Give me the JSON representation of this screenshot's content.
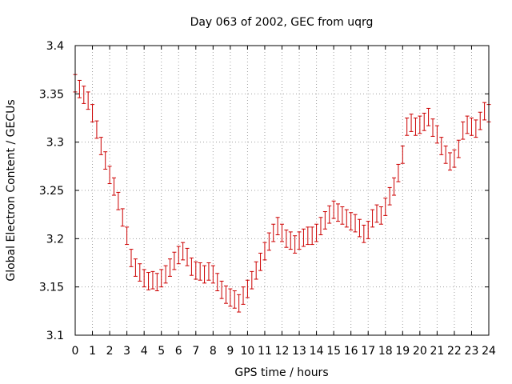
{
  "chart_data": {
    "type": "line",
    "title": "Day 063 of 2002, GEC from uqrg",
    "xlabel": "GPS time / hours",
    "ylabel": "Global Electron Content / GECUs",
    "xlim": [
      0,
      24
    ],
    "ylim": [
      3.1,
      3.4
    ],
    "x_ticks": [
      "0",
      "1",
      "2",
      "3",
      "4",
      "5",
      "6",
      "7",
      "8",
      "9",
      "10",
      "11",
      "12",
      "13",
      "14",
      "15",
      "16",
      "17",
      "18",
      "19",
      "20",
      "21",
      "22",
      "23",
      "24"
    ],
    "y_ticks": [
      "3.1",
      "3.15",
      "3.2",
      "3.25",
      "3.3",
      "3.35",
      "3.4"
    ],
    "grid": true,
    "error_bars": true,
    "series_color": "#cc0000",
    "series": [
      {
        "x": [
          0,
          0.25,
          0.5,
          0.75,
          1,
          1.25,
          1.5,
          1.75,
          2,
          2.25,
          2.5,
          2.75,
          3,
          3.25,
          3.5,
          3.75,
          4,
          4.25,
          4.5,
          4.75,
          5,
          5.25,
          5.5,
          5.75,
          6,
          6.25,
          6.5,
          6.75,
          7,
          7.25,
          7.5,
          7.75,
          8,
          8.25,
          8.5,
          8.75,
          9,
          9.25,
          9.5,
          9.75,
          10,
          10.25,
          10.5,
          10.75,
          11,
          11.25,
          11.5,
          11.75,
          12,
          12.25,
          12.5,
          12.75,
          13,
          13.25,
          13.5,
          13.75,
          14,
          14.25,
          14.5,
          14.75,
          15,
          15.25,
          15.5,
          15.75,
          16,
          16.25,
          16.5,
          16.75,
          17,
          17.25,
          17.5,
          17.75,
          18,
          18.25,
          18.5,
          18.75,
          19,
          19.25,
          19.5,
          19.75,
          20,
          20.25,
          20.5,
          20.75,
          21,
          21.25,
          21.5,
          21.75,
          22,
          22.25,
          22.5,
          22.75,
          23,
          23.25,
          23.5,
          23.75,
          24
        ],
        "values": [
          3.361,
          3.355,
          3.349,
          3.343,
          3.33,
          3.313,
          3.296,
          3.281,
          3.266,
          3.254,
          3.239,
          3.222,
          3.203,
          3.18,
          3.17,
          3.165,
          3.159,
          3.156,
          3.157,
          3.155,
          3.159,
          3.163,
          3.17,
          3.177,
          3.183,
          3.187,
          3.181,
          3.171,
          3.167,
          3.166,
          3.163,
          3.166,
          3.163,
          3.155,
          3.147,
          3.142,
          3.139,
          3.137,
          3.133,
          3.141,
          3.148,
          3.157,
          3.167,
          3.176,
          3.187,
          3.197,
          3.206,
          3.213,
          3.206,
          3.2,
          3.198,
          3.194,
          3.198,
          3.201,
          3.203,
          3.203,
          3.206,
          3.213,
          3.219,
          3.225,
          3.23,
          3.227,
          3.224,
          3.221,
          3.218,
          3.216,
          3.211,
          3.205,
          3.209,
          3.221,
          3.226,
          3.224,
          3.233,
          3.244,
          3.254,
          3.268,
          3.287,
          3.316,
          3.32,
          3.316,
          3.318,
          3.321,
          3.326,
          3.315,
          3.308,
          3.296,
          3.287,
          3.28,
          3.283,
          3.293,
          3.312,
          3.318,
          3.316,
          3.314,
          3.322,
          3.332,
          3.33
        ],
        "errors": [
          0.009,
          0.009,
          0.009,
          0.009,
          0.009,
          0.009,
          0.009,
          0.009,
          0.009,
          0.009,
          0.009,
          0.009,
          0.009,
          0.009,
          0.009,
          0.009,
          0.009,
          0.009,
          0.009,
          0.009,
          0.009,
          0.009,
          0.009,
          0.009,
          0.009,
          0.009,
          0.009,
          0.009,
          0.009,
          0.009,
          0.009,
          0.009,
          0.009,
          0.009,
          0.009,
          0.009,
          0.009,
          0.009,
          0.009,
          0.009,
          0.009,
          0.009,
          0.009,
          0.009,
          0.009,
          0.009,
          0.009,
          0.009,
          0.009,
          0.009,
          0.009,
          0.009,
          0.009,
          0.009,
          0.009,
          0.009,
          0.009,
          0.009,
          0.009,
          0.009,
          0.009,
          0.009,
          0.009,
          0.009,
          0.009,
          0.009,
          0.009,
          0.009,
          0.009,
          0.009,
          0.009,
          0.009,
          0.009,
          0.009,
          0.009,
          0.009,
          0.009,
          0.009,
          0.009,
          0.009,
          0.009,
          0.009,
          0.009,
          0.009,
          0.009,
          0.009,
          0.009,
          0.009,
          0.009,
          0.009,
          0.009,
          0.009,
          0.009,
          0.009,
          0.009,
          0.009,
          0.009
        ]
      }
    ]
  }
}
